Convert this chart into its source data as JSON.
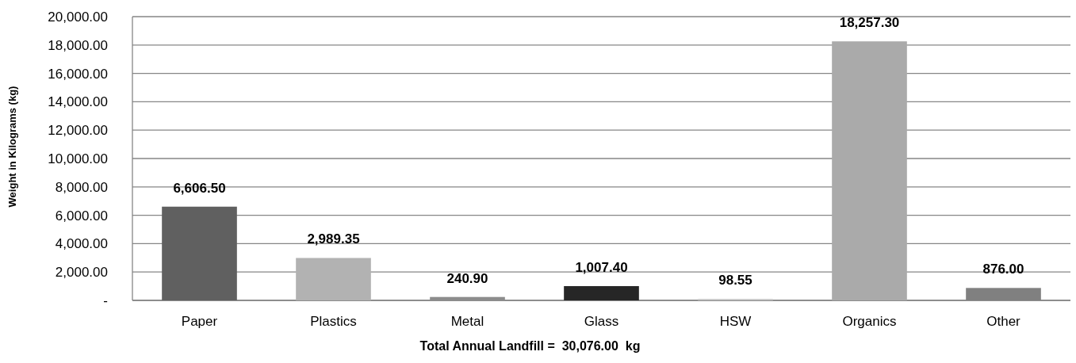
{
  "chart_data": {
    "type": "bar",
    "xlabel": "Total Annual Landfill =  30,076.00  kg",
    "ylabel": "Weight in Kilograms (kg)",
    "categories": [
      "Paper",
      "Plastics",
      "Metal",
      "Glass",
      "HSW",
      "Organics",
      "Other"
    ],
    "values": [
      6606.5,
      2989.35,
      240.9,
      1007.4,
      98.55,
      18257.3,
      876.0
    ],
    "colors": [
      "#606060",
      "#b2b2b2",
      "#8c8c8c",
      "#262626",
      "#c4c4c4",
      "#aaaaaa",
      "#808080"
    ],
    "ylim": [
      0,
      20000
    ],
    "yticks": [
      {
        "value": 0,
        "label": "-"
      },
      {
        "value": 2000,
        "label": "2,000.00"
      },
      {
        "value": 4000,
        "label": "4,000.00"
      },
      {
        "value": 6000,
        "label": "6,000.00"
      },
      {
        "value": 8000,
        "label": "8,000.00"
      },
      {
        "value": 10000,
        "label": "10,000.00"
      },
      {
        "value": 12000,
        "label": "12,000.00"
      },
      {
        "value": 14000,
        "label": "14,000.00"
      },
      {
        "value": 16000,
        "label": "16,000.00"
      },
      {
        "value": 18000,
        "label": "18,000.00"
      },
      {
        "value": 20000,
        "label": "20,000.00"
      }
    ],
    "value_labels": [
      "6,606.50",
      "2,989.35",
      "240.90",
      "1,007.40",
      "98.55",
      "18,257.30",
      "876.00"
    ],
    "grid": "y"
  }
}
